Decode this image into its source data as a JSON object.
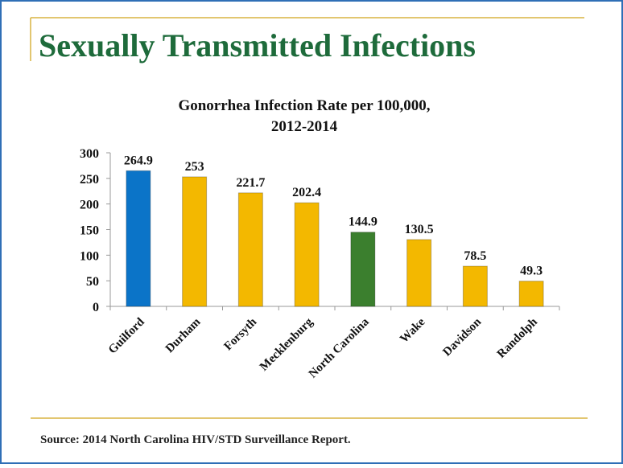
{
  "slide_title": "Sexually Transmitted Infections",
  "source": "Source: 2014 North Carolina HIV/STD Surveillance Report.",
  "chart_data": {
    "type": "bar",
    "title": [
      "Gonorrhea Infection Rate per 100,000,",
      "2012-2014"
    ],
    "categories": [
      "Guilford",
      "Durham",
      "Forsyth",
      "Mecklenburg",
      "North Carolina",
      "Wake",
      "Davidson",
      "Randolph"
    ],
    "values": [
      264.9,
      253,
      221.7,
      202.4,
      144.9,
      130.5,
      78.5,
      49.3
    ],
    "colors": [
      "#0b74c8",
      "#f3b800",
      "#f3b800",
      "#f3b800",
      "#3b7f2e",
      "#f3b800",
      "#f3b800",
      "#f3b800"
    ],
    "ylim": [
      0,
      300
    ],
    "yticks": [
      0,
      50,
      100,
      150,
      200,
      250,
      300
    ],
    "grid": false
  }
}
